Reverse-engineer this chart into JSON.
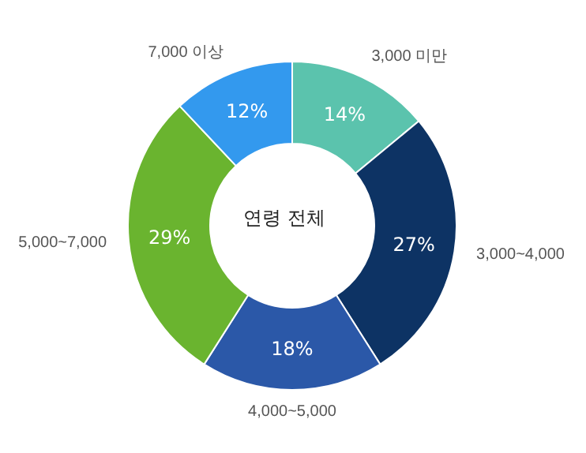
{
  "chart_data": {
    "type": "donut",
    "title": "연령 전체",
    "categories": [
      "3,000 미만",
      "3,000~4,000",
      "4,000~5,000",
      "5,000~7,000",
      "7,000 이상"
    ],
    "values": [
      14,
      27,
      18,
      29,
      12
    ],
    "value_labels": [
      "14%",
      "27%",
      "18%",
      "29%",
      "12%"
    ],
    "colors": [
      "#5bc3ad",
      "#0d3364",
      "#2b58a8",
      "#6ab42f",
      "#3399ee"
    ]
  }
}
